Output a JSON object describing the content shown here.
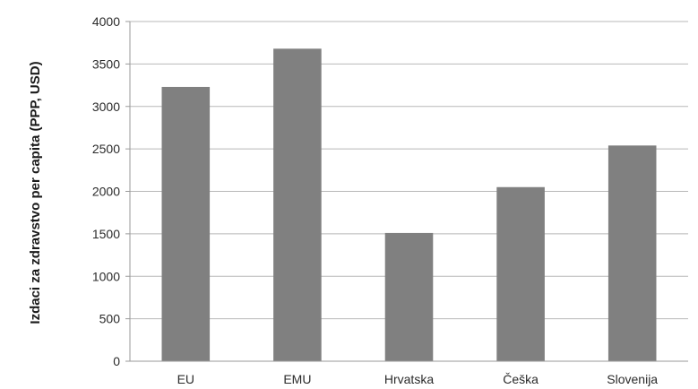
{
  "chart_data": {
    "type": "bar",
    "title": "",
    "xlabel": "",
    "ylabel": "Izdaci za zdravstvo per capita (PPP, USD)",
    "categories": [
      "EU",
      "EMU",
      "Hrvatska",
      "Češka",
      "Slovenija"
    ],
    "values": [
      3230,
      3680,
      1510,
      2050,
      2540
    ],
    "ylim": [
      0,
      4000
    ],
    "yticks": [
      0,
      500,
      1000,
      1500,
      2000,
      2500,
      3000,
      3500,
      4000
    ],
    "grid": true,
    "legend": "none",
    "bar_color": "#808080"
  }
}
